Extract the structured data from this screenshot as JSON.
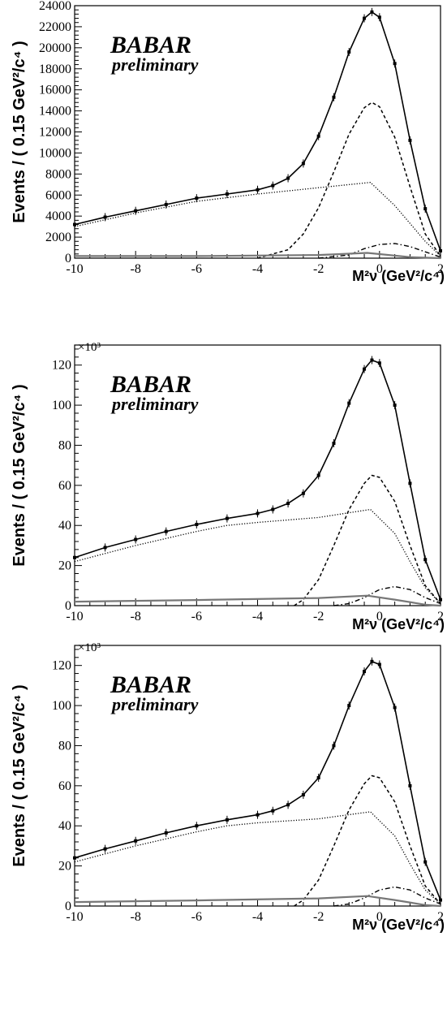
{
  "chart_data": [
    {
      "type": "line",
      "ylabel": "Events / ( 0.15 GeV²/c⁴ )",
      "xlabel": "M²ν (GeV²/c⁴)",
      "xlim": [
        -10,
        2
      ],
      "ylim": [
        0,
        24000
      ],
      "x_ticks": [
        "-10",
        "-8",
        "-6",
        "-4",
        "-2",
        "0",
        "2"
      ],
      "y_ticks": [
        "0",
        "2000",
        "4000",
        "6000",
        "8000",
        "10000",
        "12000",
        "14000",
        "16000",
        "18000",
        "20000",
        "22000",
        "24000"
      ],
      "multiplier": "",
      "logo": {
        "main": "BABAR",
        "sub": "preliminary"
      },
      "series": [
        {
          "style": "data",
          "x": [
            -10,
            -9,
            -8,
            -7,
            -6,
            -5,
            -4,
            -3.5,
            -3,
            -2.5,
            -2,
            -1.5,
            -1,
            -0.5,
            -0.25,
            0,
            0.5,
            1,
            1.5,
            2
          ],
          "y": [
            3200,
            3900,
            4500,
            5100,
            5700,
            6100,
            6500,
            6900,
            7600,
            9000,
            11600,
            15300,
            19600,
            22800,
            23400,
            22900,
            18500,
            11200,
            4700,
            700
          ]
        },
        {
          "style": "solid",
          "x": [
            -10,
            -9,
            -8,
            -7,
            -6,
            -5,
            -4,
            -3.5,
            -3,
            -2.5,
            -2,
            -1.5,
            -1,
            -0.5,
            -0.25,
            0,
            0.5,
            1,
            1.5,
            2
          ],
          "y": [
            3200,
            3900,
            4500,
            5100,
            5700,
            6100,
            6500,
            6900,
            7600,
            9000,
            11600,
            15300,
            19600,
            22800,
            23400,
            22900,
            18500,
            11200,
            4700,
            700
          ]
        },
        {
          "style": "dashed",
          "x": [
            -4,
            -3,
            -2.5,
            -2,
            -1.5,
            -1,
            -0.5,
            -0.25,
            0,
            0.5,
            1,
            1.5,
            2
          ],
          "y": [
            0,
            800,
            2300,
            4800,
            8200,
            11800,
            14300,
            14800,
            14400,
            11500,
            6800,
            2300,
            200
          ]
        },
        {
          "style": "dotted",
          "x": [
            -10,
            -8,
            -6,
            -4,
            -2,
            -0.3,
            0.5,
            1,
            1.5,
            2
          ],
          "y": [
            3000,
            4300,
            5400,
            6100,
            6700,
            7200,
            5000,
            3300,
            1600,
            200
          ]
        },
        {
          "style": "dashdot",
          "x": [
            -2,
            -1,
            -0.5,
            0,
            0.5,
            1,
            1.5,
            2
          ],
          "y": [
            0,
            300,
            900,
            1300,
            1400,
            1100,
            600,
            100
          ]
        },
        {
          "style": "gray",
          "x": [
            -10,
            -6,
            -2,
            -0.4,
            1,
            2
          ],
          "y": [
            200,
            200,
            300,
            500,
            100,
            0
          ]
        }
      ]
    },
    {
      "type": "line",
      "ylabel": "Events / ( 0.15 GeV²/c⁴ )",
      "xlabel": "M²ν (GeV²/c⁴)",
      "xlim": [
        -10,
        2
      ],
      "ylim": [
        0,
        130
      ],
      "x_ticks": [
        "-10",
        "-8",
        "-6",
        "-4",
        "-2",
        "0",
        "2"
      ],
      "y_ticks": [
        "0",
        "20",
        "40",
        "60",
        "80",
        "100",
        "120"
      ],
      "multiplier": "×10³",
      "logo": {
        "main": "BABAR",
        "sub": "preliminary"
      },
      "series": [
        {
          "style": "data",
          "x": [
            -10,
            -9,
            -8,
            -7,
            -6,
            -5,
            -4,
            -3.5,
            -3,
            -2.5,
            -2,
            -1.5,
            -1,
            -0.5,
            -0.25,
            0,
            0.5,
            1,
            1.5,
            2
          ],
          "y": [
            24,
            29,
            33,
            37,
            40.5,
            43.5,
            46,
            48,
            51,
            56,
            65,
            81,
            101,
            118,
            122.5,
            121,
            100,
            61,
            23,
            3
          ]
        },
        {
          "style": "solid",
          "x": [
            -10,
            -9,
            -8,
            -7,
            -6,
            -5,
            -4,
            -3.5,
            -3,
            -2.5,
            -2,
            -1.5,
            -1,
            -0.5,
            -0.25,
            0,
            0.5,
            1,
            1.5,
            2
          ],
          "y": [
            24,
            29,
            33,
            37,
            40.5,
            43.5,
            46,
            48,
            51,
            56,
            65,
            81,
            101,
            118,
            122.5,
            121,
            100,
            61,
            23,
            3
          ]
        },
        {
          "style": "dashed",
          "x": [
            -2.8,
            -2.5,
            -2,
            -1.5,
            -1,
            -0.5,
            -0.25,
            0,
            0.5,
            1,
            1.5,
            2
          ],
          "y": [
            0,
            3,
            13,
            30,
            48,
            61,
            65,
            64,
            52,
            30,
            10,
            1
          ]
        },
        {
          "style": "dotted",
          "x": [
            -10,
            -8,
            -6,
            -5,
            -4,
            -2,
            -0.3,
            0.5,
            1,
            1.5,
            2
          ],
          "y": [
            22,
            30,
            37,
            40,
            41.5,
            44,
            48,
            36,
            22,
            9,
            1
          ]
        },
        {
          "style": "dashdot",
          "x": [
            -1.5,
            -1,
            -0.5,
            0,
            0.5,
            1,
            1.5,
            2
          ],
          "y": [
            0,
            1,
            4,
            8,
            9.5,
            8,
            4,
            1
          ]
        },
        {
          "style": "gray",
          "x": [
            -10,
            -6,
            -2,
            -0.4,
            0.5,
            1.5,
            2
          ],
          "y": [
            2,
            2.8,
            3.8,
            5,
            3,
            0.5,
            0
          ]
        }
      ]
    },
    {
      "type": "line",
      "ylabel": "Events / ( 0.15 GeV²/c⁴ )",
      "xlabel": "M²ν (GeV²/c⁴)",
      "xlim": [
        -10,
        2
      ],
      "ylim": [
        0,
        130
      ],
      "x_ticks": [
        "-10",
        "-8",
        "-6",
        "-4",
        "-2",
        "0",
        "2"
      ],
      "y_ticks": [
        "0",
        "20",
        "40",
        "60",
        "80",
        "100",
        "120"
      ],
      "multiplier": "×10³",
      "logo": {
        "main": "BABAR",
        "sub": "preliminary"
      },
      "series": [
        {
          "style": "data",
          "x": [
            -10,
            -9,
            -8,
            -7,
            -6,
            -5,
            -4,
            -3.5,
            -3,
            -2.5,
            -2,
            -1.5,
            -1,
            -0.5,
            -0.25,
            0,
            0.5,
            1,
            1.5,
            2
          ],
          "y": [
            24,
            28.5,
            32.5,
            36.5,
            40,
            43,
            45.5,
            47.5,
            50.5,
            55.5,
            64,
            80,
            100,
            117,
            122,
            120.5,
            99,
            60,
            22,
            3
          ]
        },
        {
          "style": "solid",
          "x": [
            -10,
            -9,
            -8,
            -7,
            -6,
            -5,
            -4,
            -3.5,
            -3,
            -2.5,
            -2,
            -1.5,
            -1,
            -0.5,
            -0.25,
            0,
            0.5,
            1,
            1.5,
            2
          ],
          "y": [
            24,
            28.5,
            32.5,
            36.5,
            40,
            43,
            45.5,
            47.5,
            50.5,
            55.5,
            64,
            80,
            100,
            117,
            122,
            120.5,
            99,
            60,
            22,
            3
          ]
        },
        {
          "style": "dashed",
          "x": [
            -2.8,
            -2.5,
            -2,
            -1.5,
            -1,
            -0.5,
            -0.25,
            0,
            0.5,
            1,
            1.5,
            2
          ],
          "y": [
            0,
            3,
            13,
            30,
            48,
            61,
            65,
            64,
            52,
            30,
            10,
            1
          ]
        },
        {
          "style": "dotted",
          "x": [
            -10,
            -8,
            -6,
            -5,
            -4,
            -2,
            -0.3,
            0.5,
            1,
            1.5,
            2
          ],
          "y": [
            22,
            30,
            37,
            40,
            41.5,
            43.5,
            47,
            35,
            21,
            8,
            1
          ]
        },
        {
          "style": "dashdot",
          "x": [
            -1.5,
            -1,
            -0.5,
            0,
            0.5,
            1,
            1.5,
            2
          ],
          "y": [
            0,
            1,
            4,
            8,
            9.5,
            8,
            4,
            1
          ]
        },
        {
          "style": "gray",
          "x": [
            -10,
            -6,
            -2,
            -0.4,
            0.5,
            1.5,
            2
          ],
          "y": [
            2,
            2.8,
            3.8,
            5,
            3,
            0.5,
            0
          ]
        }
      ]
    }
  ]
}
